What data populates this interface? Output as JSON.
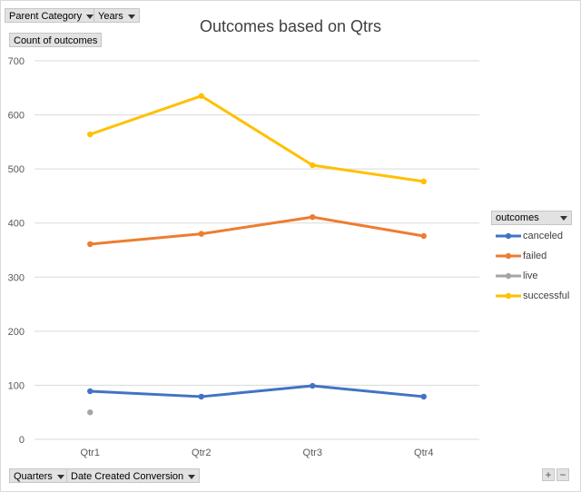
{
  "filters": {
    "parent_category": "Parent Category",
    "years": "Years",
    "values_field": "Count of outcomes",
    "quarters": "Quarters",
    "date_conversion": "Date Created Conversion"
  },
  "legend": {
    "title": "outcomes"
  },
  "zoom": {
    "plus": "+",
    "minus": "−"
  },
  "colors": {
    "canceled": "#4472C4",
    "failed": "#ED7D31",
    "live": "#A5A5A5",
    "successful": "#FFC000",
    "grid": "#d9d9d9",
    "axis_text": "#595959"
  },
  "chart_data": {
    "type": "line",
    "title": "Outcomes based on Qtrs",
    "xlabel": "",
    "ylabel": "",
    "categories": [
      "Qtr1",
      "Qtr2",
      "Qtr3",
      "Qtr4"
    ],
    "ylim": [
      0,
      700
    ],
    "yticks": [
      0,
      100,
      200,
      300,
      400,
      500,
      600,
      700
    ],
    "grid": true,
    "legend_position": "right",
    "series": [
      {
        "name": "canceled",
        "values": [
          89,
          79,
          99,
          79
        ]
      },
      {
        "name": "failed",
        "values": [
          361,
          380,
          411,
          376
        ]
      },
      {
        "name": "live",
        "values": [
          50,
          null,
          null,
          null
        ]
      },
      {
        "name": "successful",
        "values": [
          564,
          635,
          507,
          477
        ]
      }
    ]
  }
}
